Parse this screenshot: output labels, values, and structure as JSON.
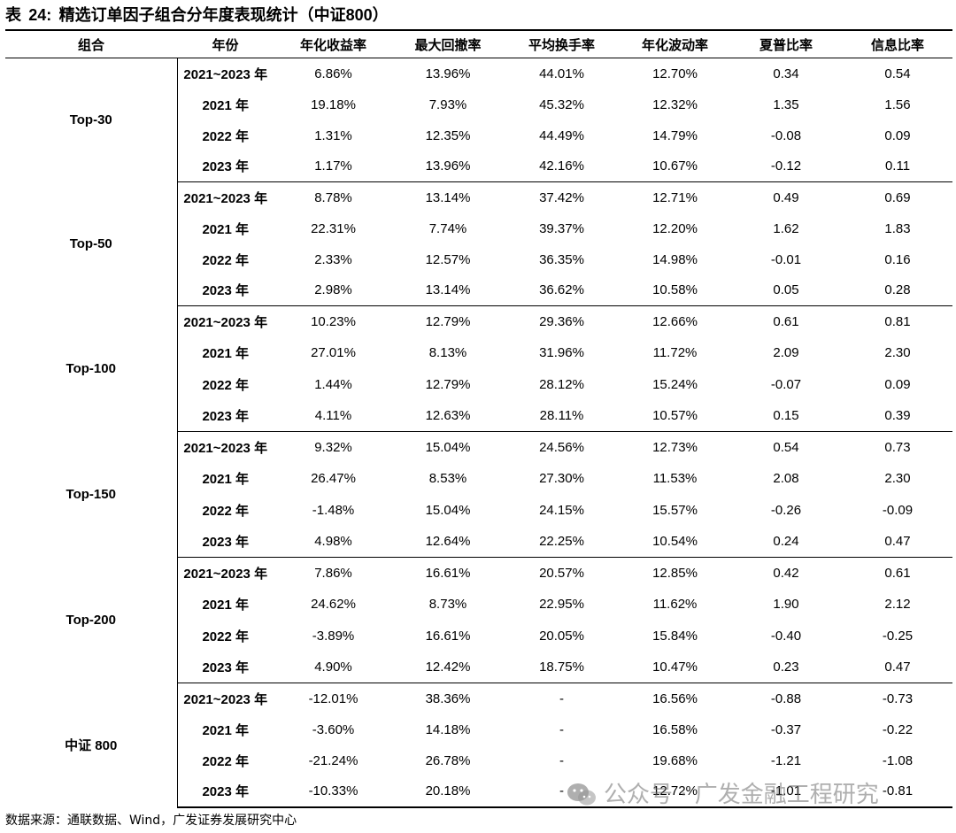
{
  "title": {
    "prefix": "表",
    "number": "24:",
    "text": "精选订单因子组合分年度表现统计（",
    "tail": "中证800）"
  },
  "headers": [
    "组合",
    "年份",
    "年化收益率",
    "最大回撤率",
    "平均换手率",
    "年化波动率",
    "夏普比率",
    "信息比率"
  ],
  "groups": [
    {
      "name": "Top-30",
      "rows": [
        {
          "year": "2021~2023",
          "unit": "年",
          "values": [
            "6.86%",
            "13.96%",
            "44.01%",
            "12.70%",
            "0.34",
            "0.54"
          ]
        },
        {
          "year": "2021",
          "unit": "年",
          "values": [
            "19.18%",
            "7.93%",
            "45.32%",
            "12.32%",
            "1.35",
            "1.56"
          ]
        },
        {
          "year": "2022",
          "unit": "年",
          "values": [
            "1.31%",
            "12.35%",
            "44.49%",
            "14.79%",
            "-0.08",
            "0.09"
          ]
        },
        {
          "year": "2023",
          "unit": "年",
          "values": [
            "1.17%",
            "13.96%",
            "42.16%",
            "10.67%",
            "-0.12",
            "0.11"
          ]
        }
      ]
    },
    {
      "name": "Top-50",
      "rows": [
        {
          "year": "2021~2023",
          "unit": "年",
          "values": [
            "8.78%",
            "13.14%",
            "37.42%",
            "12.71%",
            "0.49",
            "0.69"
          ]
        },
        {
          "year": "2021",
          "unit": "年",
          "values": [
            "22.31%",
            "7.74%",
            "39.37%",
            "12.20%",
            "1.62",
            "1.83"
          ]
        },
        {
          "year": "2022",
          "unit": "年",
          "values": [
            "2.33%",
            "12.57%",
            "36.35%",
            "14.98%",
            "-0.01",
            "0.16"
          ]
        },
        {
          "year": "2023",
          "unit": "年",
          "values": [
            "2.98%",
            "13.14%",
            "36.62%",
            "10.58%",
            "0.05",
            "0.28"
          ]
        }
      ]
    },
    {
      "name": "Top-100",
      "rows": [
        {
          "year": "2021~2023",
          "unit": "年",
          "values": [
            "10.23%",
            "12.79%",
            "29.36%",
            "12.66%",
            "0.61",
            "0.81"
          ]
        },
        {
          "year": "2021",
          "unit": "年",
          "values": [
            "27.01%",
            "8.13%",
            "31.96%",
            "11.72%",
            "2.09",
            "2.30"
          ]
        },
        {
          "year": "2022",
          "unit": "年",
          "values": [
            "1.44%",
            "12.79%",
            "28.12%",
            "15.24%",
            "-0.07",
            "0.09"
          ]
        },
        {
          "year": "2023",
          "unit": "年",
          "values": [
            "4.11%",
            "12.63%",
            "28.11%",
            "10.57%",
            "0.15",
            "0.39"
          ]
        }
      ]
    },
    {
      "name": "Top-150",
      "rows": [
        {
          "year": "2021~2023",
          "unit": "年",
          "values": [
            "9.32%",
            "15.04%",
            "24.56%",
            "12.73%",
            "0.54",
            "0.73"
          ]
        },
        {
          "year": "2021",
          "unit": "年",
          "values": [
            "26.47%",
            "8.53%",
            "27.30%",
            "11.53%",
            "2.08",
            "2.30"
          ]
        },
        {
          "year": "2022",
          "unit": "年",
          "values": [
            "-1.48%",
            "15.04%",
            "24.15%",
            "15.57%",
            "-0.26",
            "-0.09"
          ]
        },
        {
          "year": "2023",
          "unit": "年",
          "values": [
            "4.98%",
            "12.64%",
            "22.25%",
            "10.54%",
            "0.24",
            "0.47"
          ]
        }
      ]
    },
    {
      "name": "Top-200",
      "rows": [
        {
          "year": "2021~2023",
          "unit": "年",
          "values": [
            "7.86%",
            "16.61%",
            "20.57%",
            "12.85%",
            "0.42",
            "0.61"
          ]
        },
        {
          "year": "2021",
          "unit": "年",
          "values": [
            "24.62%",
            "8.73%",
            "22.95%",
            "11.62%",
            "1.90",
            "2.12"
          ]
        },
        {
          "year": "2022",
          "unit": "年",
          "values": [
            "-3.89%",
            "16.61%",
            "20.05%",
            "15.84%",
            "-0.40",
            "-0.25"
          ]
        },
        {
          "year": "2023",
          "unit": "年",
          "values": [
            "4.90%",
            "12.42%",
            "18.75%",
            "10.47%",
            "0.23",
            "0.47"
          ]
        }
      ]
    },
    {
      "name": "中证 800",
      "rows": [
        {
          "year": "2021~2023",
          "unit": "年",
          "values": [
            "-12.01%",
            "38.36%",
            "-",
            "16.56%",
            "-0.88",
            "-0.73"
          ]
        },
        {
          "year": "2021",
          "unit": "年",
          "values": [
            "-3.60%",
            "14.18%",
            "-",
            "16.58%",
            "-0.37",
            "-0.22"
          ]
        },
        {
          "year": "2022",
          "unit": "年",
          "values": [
            "-21.24%",
            "26.78%",
            "-",
            "19.68%",
            "-1.21",
            "-1.08"
          ]
        },
        {
          "year": "2023",
          "unit": "年",
          "values": [
            "-10.33%",
            "20.18%",
            "-",
            "12.72%",
            "-1.01",
            "-0.81"
          ]
        }
      ]
    }
  ],
  "row_heights": [
    35,
    35,
    35,
    35,
    35,
    35,
    35,
    35,
    35.5,
    35.5,
    35.5,
    35.5,
    35.5,
    35.5,
    35.5,
    35.5,
    35.5,
    35.5,
    35.5,
    35.5,
    35,
    35,
    35,
    35
  ],
  "source": "数据来源：通联数据、Wind，广发证券发展研究中心",
  "watermark": "公众号 · 广发金融工程研究"
}
